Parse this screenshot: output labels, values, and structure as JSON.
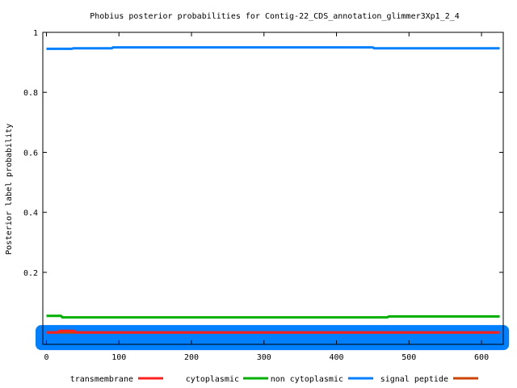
{
  "chart_data": {
    "type": "line",
    "title": "Phobius posterior probabilities for Contig-22_CDS_annotation_glimmer3Xp1_2_4",
    "xlabel": "",
    "ylabel": "Posterior label probability",
    "xlim": [
      -5,
      630
    ],
    "ylim": [
      -0.04,
      1.0
    ],
    "x_ticks": [
      0,
      100,
      200,
      300,
      400,
      500,
      600
    ],
    "x_tick_labels": [
      "0",
      "100",
      "200",
      "300",
      "400",
      "500",
      "600"
    ],
    "y_ticks": [
      0.2,
      0.4,
      0.6,
      0.8,
      1.0
    ],
    "y_tick_labels": [
      "0.2",
      "0.4",
      "0.6",
      "0.8",
      "1"
    ],
    "grid": false,
    "legend_position": "bottom",
    "series": [
      {
        "name": "transmembrane",
        "color": "#ff2020",
        "points": [
          [
            0,
            0.0
          ],
          [
            15,
            0.0
          ],
          [
            18,
            0.005
          ],
          [
            38,
            0.005
          ],
          [
            40,
            0.0
          ],
          [
            625,
            0.0
          ]
        ]
      },
      {
        "name": "cytoplasmic",
        "color": "#00b000",
        "points": [
          [
            0,
            0.055
          ],
          [
            20,
            0.055
          ],
          [
            22,
            0.05
          ],
          [
            470,
            0.05
          ],
          [
            472,
            0.053
          ],
          [
            625,
            0.053
          ]
        ]
      },
      {
        "name": "non cytoplasmic",
        "color": "#0080ff",
        "points": [
          [
            0,
            0.945
          ],
          [
            35,
            0.945
          ],
          [
            37,
            0.947
          ],
          [
            90,
            0.947
          ],
          [
            92,
            0.95
          ],
          [
            450,
            0.95
          ],
          [
            452,
            0.947
          ],
          [
            625,
            0.947
          ]
        ]
      },
      {
        "name": "signal peptide",
        "color": "#cc4400",
        "points": [
          [
            0,
            0.0
          ],
          [
            625,
            0.0
          ]
        ]
      }
    ],
    "sequence_band": {
      "color": "#0080ff",
      "from": -15,
      "to": 638
    }
  }
}
